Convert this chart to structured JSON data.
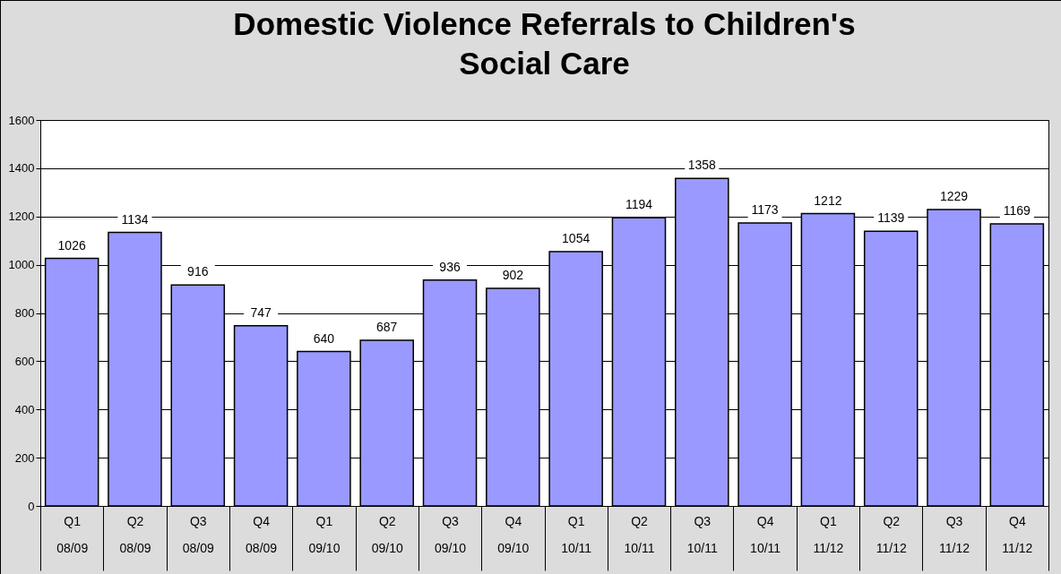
{
  "chart_data": {
    "type": "bar",
    "title": "Domestic Violence Referrals to Children's Social Care",
    "categories": [
      "Q1 08/09",
      "Q2 08/09",
      "Q3 08/09",
      "Q4 08/09",
      "Q1 09/10",
      "Q2 09/10",
      "Q3 09/10",
      "Q4 09/10",
      "Q1 10/11",
      "Q2 10/11",
      "Q3 10/11",
      "Q4 10/11",
      "Q1 11/12",
      "Q2 11/12",
      "Q3 11/12",
      "Q4 11/12"
    ],
    "values": [
      1026,
      1134,
      916,
      747,
      640,
      687,
      936,
      902,
      1054,
      1194,
      1358,
      1173,
      1212,
      1139,
      1229,
      1169
    ],
    "color": "#9999ff",
    "ylim": [
      0,
      1600
    ],
    "yticks": [
      0,
      200,
      400,
      600,
      800,
      1000,
      1200,
      1400,
      1600
    ],
    "grid": "y",
    "data_labels": true
  }
}
